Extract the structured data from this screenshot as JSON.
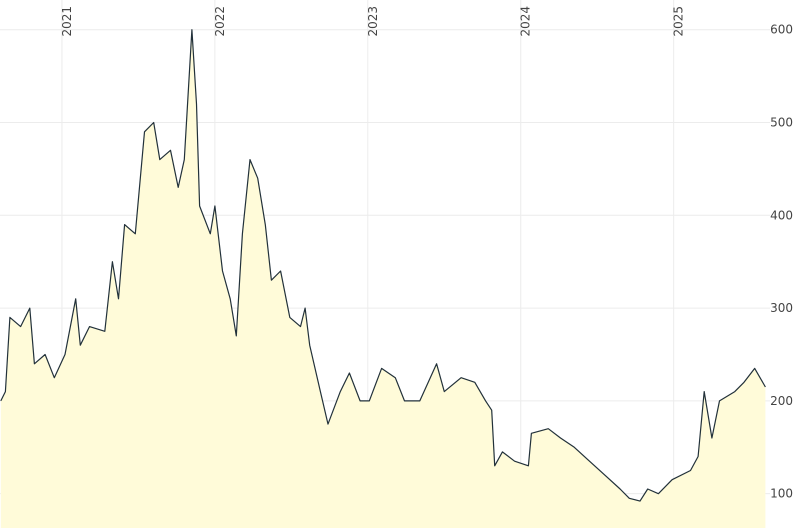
{
  "chart_data": {
    "type": "area",
    "x": [
      2020.6,
      2020.63,
      2020.66,
      2020.73,
      2020.79,
      2020.82,
      2020.89,
      2020.95,
      2021.02,
      2021.09,
      2021.12,
      2021.18,
      2021.28,
      2021.33,
      2021.37,
      2021.41,
      2021.48,
      2021.54,
      2021.6,
      2021.64,
      2021.71,
      2021.76,
      2021.8,
      2021.85,
      2021.88,
      2021.9,
      2021.97,
      2022.0,
      2022.05,
      2022.1,
      2022.14,
      2022.18,
      2022.23,
      2022.28,
      2022.33,
      2022.37,
      2022.43,
      2022.49,
      2022.56,
      2022.59,
      2022.62,
      2022.69,
      2022.74,
      2022.82,
      2022.88,
      2022.95,
      2023.01,
      2023.09,
      2023.18,
      2023.24,
      2023.34,
      2023.45,
      2023.5,
      2023.61,
      2023.7,
      2023.77,
      2023.81,
      2023.83,
      2023.88,
      2023.96,
      2024.05,
      2024.07,
      2024.18,
      2024.26,
      2024.35,
      2024.45,
      2024.55,
      2024.65,
      2024.71,
      2024.78,
      2024.83,
      2024.9,
      2024.99,
      2025.11,
      2025.16,
      2025.2,
      2025.25,
      2025.3,
      2025.4,
      2025.46,
      2025.53,
      2025.6
    ],
    "values": [
      200,
      210,
      290,
      280,
      300,
      240,
      250,
      225,
      250,
      310,
      260,
      280,
      275,
      350,
      310,
      390,
      380,
      490,
      500,
      460,
      470,
      430,
      460,
      600,
      520,
      410,
      380,
      410,
      340,
      310,
      270,
      380,
      460,
      440,
      390,
      330,
      340,
      290,
      280,
      300,
      260,
      210,
      175,
      210,
      230,
      200,
      200,
      235,
      225,
      200,
      200,
      240,
      210,
      225,
      220,
      200,
      190,
      130,
      145,
      135,
      130,
      165,
      170,
      160,
      150,
      135,
      120,
      105,
      95,
      92,
      105,
      100,
      115,
      125,
      140,
      210,
      160,
      200,
      210,
      220,
      235,
      215
    ],
    "color": "#22313a",
    "fill": "#fffbd9",
    "xlim": [
      2020.595,
      2025.63
    ],
    "ylim": [
      63,
      632
    ],
    "xticks": [
      2021,
      2022,
      2023,
      2024,
      2025
    ],
    "yticks": [
      100,
      200,
      300,
      400,
      500,
      600
    ],
    "grid": true
  }
}
